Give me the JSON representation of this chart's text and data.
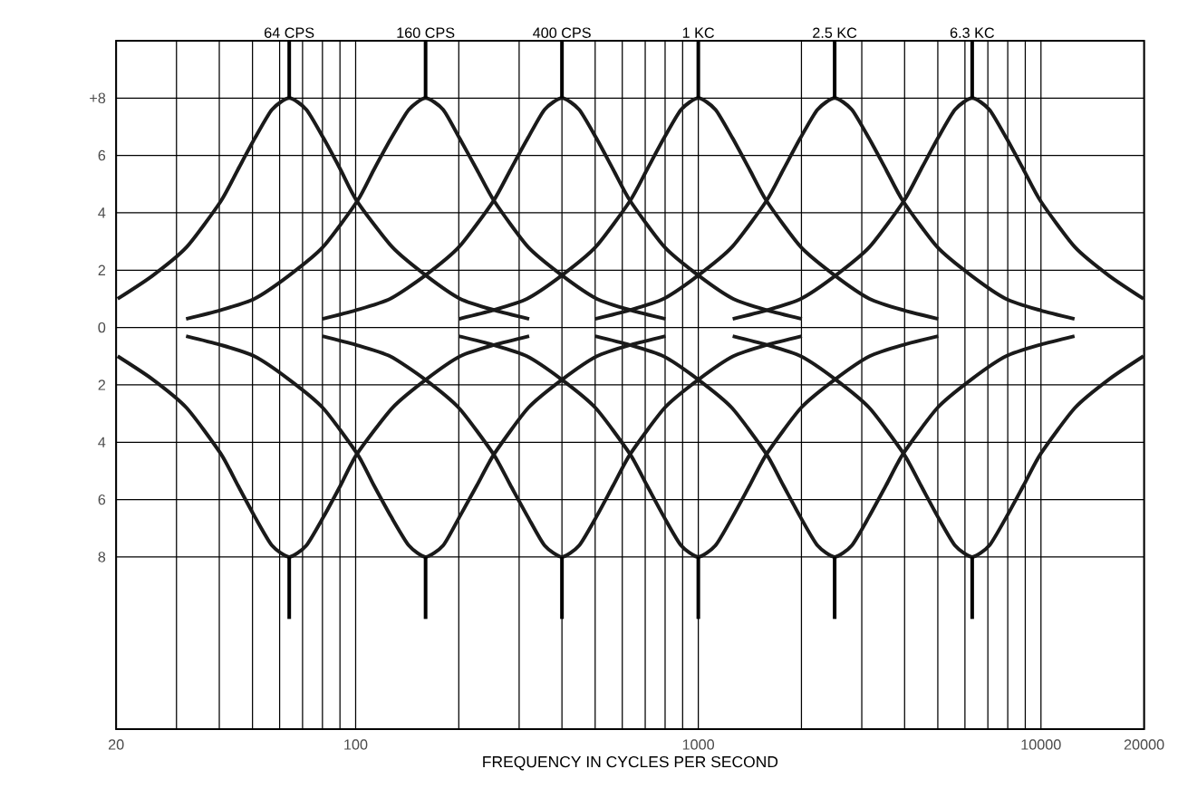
{
  "chart_data": {
    "type": "line",
    "log": "x",
    "grid": true,
    "xlabel": "FREQUENCY IN CYCLES PER SECOND",
    "xlim": [
      20,
      20000
    ],
    "ylim": [
      -14,
      10
    ],
    "xticks": [
      20,
      {
        "value": 30,
        "label": null
      },
      {
        "value": 40,
        "label": null
      },
      {
        "value": 50,
        "label": null
      },
      {
        "value": 60,
        "label": null
      },
      {
        "value": 70,
        "label": null
      },
      {
        "value": 80,
        "label": null
      },
      {
        "value": 90,
        "label": null
      },
      100,
      {
        "value": 200,
        "label": null
      },
      {
        "value": 300,
        "label": null
      },
      {
        "value": 400,
        "label": null
      },
      {
        "value": 500,
        "label": null
      },
      {
        "value": 600,
        "label": null
      },
      {
        "value": 700,
        "label": null
      },
      {
        "value": 800,
        "label": null
      },
      {
        "value": 900,
        "label": null
      },
      1000,
      {
        "value": 2000,
        "label": null
      },
      {
        "value": 3000,
        "label": null
      },
      {
        "value": 4000,
        "label": null
      },
      {
        "value": 5000,
        "label": null
      },
      {
        "value": 6000,
        "label": null
      },
      {
        "value": 7000,
        "label": null
      },
      {
        "value": 8000,
        "label": null
      },
      {
        "value": 9000,
        "label": null
      },
      10000,
      20000
    ],
    "yticks": [
      {
        "value": -8,
        "label": "8"
      },
      {
        "value": -6,
        "label": "6"
      },
      {
        "value": -4,
        "label": "4"
      },
      {
        "value": -2,
        "label": "2"
      },
      0,
      2,
      4,
      6,
      {
        "value": 8,
        "label": "+8"
      }
    ],
    "ref_lines": [
      {
        "axis": "x",
        "value": 64,
        "label": "64 CPS"
      },
      {
        "axis": "x",
        "value": 160,
        "label": "160 CPS"
      },
      {
        "axis": "x",
        "value": 400,
        "label": "400 CPS"
      },
      {
        "axis": "x",
        "value": 1000,
        "label": "1 KC"
      },
      {
        "axis": "x",
        "value": 2500,
        "label": "2.5 KC"
      },
      {
        "axis": "x",
        "value": 6300,
        "label": "6.3 KC"
      }
    ],
    "series": [
      {
        "color": "#1a1a1a",
        "x": [
          20.2,
          25.5,
          32.1,
          40.4,
          45.3,
          50.8,
          57,
          64,
          71.8,
          80.6,
          90.4,
          101,
          128,
          161,
          202,
          255,
          321
        ],
        "values": [
          1.0,
          1.8,
          2.8,
          4.4,
          5.5,
          6.6,
          7.6,
          8,
          7.6,
          6.6,
          5.5,
          4.4,
          2.8,
          1.8,
          1.0,
          0.6,
          0.3
        ]
      },
      {
        "color": "#1a1a1a",
        "x": [
          32,
          40.2,
          50.6,
          63.7,
          80.2,
          101,
          113,
          127,
          143,
          160,
          180,
          201,
          226,
          254,
          319,
          402,
          506,
          637,
          802
        ],
        "values": [
          0.3,
          0.6,
          1.0,
          1.8,
          2.8,
          4.4,
          5.5,
          6.6,
          7.6,
          8,
          7.6,
          6.6,
          5.5,
          4.4,
          2.8,
          1.8,
          1.0,
          0.6,
          0.3
        ]
      },
      {
        "color": "#1a1a1a",
        "x": [
          80,
          100,
          126,
          159,
          200,
          252,
          283,
          318,
          356,
          400,
          449,
          504,
          565,
          634,
          798,
          1005,
          1265,
          1592,
          2005
        ],
        "values": [
          0.3,
          0.6,
          1.0,
          1.8,
          2.8,
          4.4,
          5.5,
          6.6,
          7.6,
          8,
          7.6,
          6.6,
          5.5,
          4.4,
          2.8,
          1.8,
          1.0,
          0.6,
          0.3
        ]
      },
      {
        "color": "#1a1a1a",
        "x": [
          200,
          251,
          316,
          398,
          501,
          631,
          708,
          794,
          891,
          1000,
          1122,
          1259,
          1413,
          1585,
          1995,
          2512,
          3162,
          3981,
          5012
        ],
        "values": [
          0.3,
          0.6,
          1.0,
          1.8,
          2.8,
          4.4,
          5.5,
          6.6,
          7.6,
          8,
          7.6,
          6.6,
          5.5,
          4.4,
          2.8,
          1.8,
          1.0,
          0.6,
          0.3
        ]
      },
      {
        "color": "#1a1a1a",
        "x": [
          500,
          628,
          791,
          995,
          1253,
          1578,
          1770,
          1985,
          2228,
          2500,
          2805,
          3148,
          3533,
          3963,
          4988,
          6280,
          7905,
          9953,
          12530
        ],
        "values": [
          0.3,
          0.6,
          1.0,
          1.8,
          2.8,
          4.4,
          5.5,
          6.6,
          7.6,
          8,
          7.6,
          6.6,
          5.5,
          4.4,
          2.8,
          1.8,
          1.0,
          0.6,
          0.3
        ]
      },
      {
        "color": "#1a1a1a",
        "x": [
          1260,
          1581,
          1991,
          2507,
          3156,
          3975,
          4460,
          5002,
          5613,
          6300,
          7069,
          7932,
          8902,
          9986,
          12569,
          15826,
          19921
        ],
        "values": [
          0.3,
          0.6,
          1.0,
          1.8,
          2.8,
          4.4,
          5.5,
          6.6,
          7.6,
          8,
          7.6,
          6.6,
          5.5,
          4.4,
          2.8,
          1.8,
          1.0
        ]
      },
      {
        "color": "#1a1a1a",
        "x": [
          20.2,
          25.5,
          32.1,
          40.4,
          45.3,
          50.8,
          57,
          64,
          71.8,
          80.6,
          90.4,
          101,
          128,
          161,
          202,
          255,
          321
        ],
        "values": [
          -1.0,
          -1.8,
          -2.8,
          -4.4,
          -5.5,
          -6.6,
          -7.6,
          -8,
          -7.6,
          -6.6,
          -5.5,
          -4.4,
          -2.8,
          -1.8,
          -1.0,
          -0.6,
          -0.3
        ]
      },
      {
        "color": "#1a1a1a",
        "x": [
          32,
          40.2,
          50.6,
          63.7,
          80.2,
          101,
          113,
          127,
          143,
          160,
          180,
          201,
          226,
          254,
          319,
          402,
          506,
          637,
          802
        ],
        "values": [
          -0.3,
          -0.6,
          -1.0,
          -1.8,
          -2.8,
          -4.4,
          -5.5,
          -6.6,
          -7.6,
          -8,
          -7.6,
          -6.6,
          -5.5,
          -4.4,
          -2.8,
          -1.8,
          -1.0,
          -0.6,
          -0.3
        ]
      },
      {
        "color": "#1a1a1a",
        "x": [
          80,
          100,
          126,
          159,
          200,
          252,
          283,
          318,
          356,
          400,
          449,
          504,
          565,
          634,
          798,
          1005,
          1265,
          1592,
          2005
        ],
        "values": [
          -0.3,
          -0.6,
          -1.0,
          -1.8,
          -2.8,
          -4.4,
          -5.5,
          -6.6,
          -7.6,
          -8,
          -7.6,
          -6.6,
          -5.5,
          -4.4,
          -2.8,
          -1.8,
          -1.0,
          -0.6,
          -0.3
        ]
      },
      {
        "color": "#1a1a1a",
        "x": [
          200,
          251,
          316,
          398,
          501,
          631,
          708,
          794,
          891,
          1000,
          1122,
          1259,
          1413,
          1585,
          1995,
          2512,
          3162,
          3981,
          5012
        ],
        "values": [
          -0.3,
          -0.6,
          -1.0,
          -1.8,
          -2.8,
          -4.4,
          -5.5,
          -6.6,
          -7.6,
          -8,
          -7.6,
          -6.6,
          -5.5,
          -4.4,
          -2.8,
          -1.8,
          -1.0,
          -0.6,
          -0.3
        ]
      },
      {
        "color": "#1a1a1a",
        "x": [
          500,
          628,
          791,
          995,
          1253,
          1578,
          1770,
          1985,
          2228,
          2500,
          2805,
          3148,
          3533,
          3963,
          4988,
          6280,
          7905,
          9953,
          12530
        ],
        "values": [
          -0.3,
          -0.6,
          -1.0,
          -1.8,
          -2.8,
          -4.4,
          -5.5,
          -6.6,
          -7.6,
          -8,
          -7.6,
          -6.6,
          -5.5,
          -4.4,
          -2.8,
          -1.8,
          -1.0,
          -0.6,
          -0.3
        ]
      },
      {
        "color": "#1a1a1a",
        "x": [
          1260,
          1581,
          1991,
          2507,
          3156,
          3975,
          4460,
          5002,
          5613,
          6300,
          7069,
          7932,
          8902,
          9986,
          12569,
          15826,
          19921
        ],
        "values": [
          -0.3,
          -0.6,
          -1.0,
          -1.8,
          -2.8,
          -4.4,
          -5.5,
          -6.6,
          -7.6,
          -8,
          -7.6,
          -6.6,
          -5.5,
          -4.4,
          -2.8,
          -1.8,
          -1.0
        ]
      }
    ]
  }
}
